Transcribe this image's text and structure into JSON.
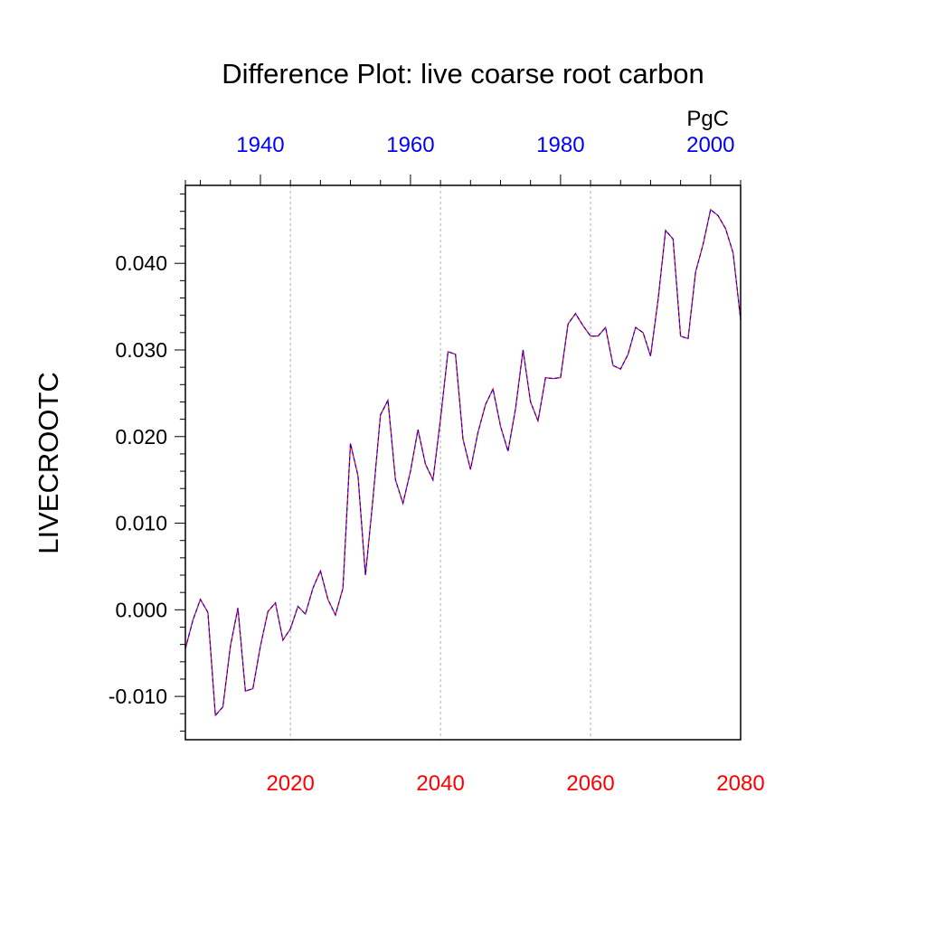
{
  "chart_data": {
    "type": "line",
    "title": "Difference Plot: live coarse root carbon",
    "units": "PgC",
    "ylabel": "LIVECROOTC",
    "ylim": [
      -0.015,
      0.049
    ],
    "y_ticks": [
      -0.01,
      0.0,
      0.01,
      0.02,
      0.03,
      0.04
    ],
    "y_tick_labels": [
      "-0.010",
      "0.000",
      "0.010",
      "0.020",
      "0.030",
      "0.040"
    ],
    "x_bottom": {
      "range": [
        2006,
        2080
      ],
      "ticks": [
        2020,
        2040,
        2060,
        2080
      ],
      "tick_labels": [
        "2020",
        "2040",
        "2060",
        "2080"
      ],
      "color": "#ff0000"
    },
    "x_top": {
      "range": [
        1930,
        2004
      ],
      "ticks": [
        1940,
        1960,
        1980,
        2000
      ],
      "tick_labels": [
        "1940",
        "1960",
        "1980",
        "2000"
      ],
      "color": "#0000ff"
    },
    "grid": "vertical-dotted",
    "series": [
      {
        "line_colors": [
          "#ff0000",
          "#0000ff"
        ],
        "x": [
          2006,
          2007,
          2008,
          2009,
          2010,
          2011,
          2012,
          2013,
          2014,
          2015,
          2016,
          2017,
          2018,
          2019,
          2020,
          2021,
          2022,
          2023,
          2024,
          2025,
          2026,
          2027,
          2028,
          2029,
          2030,
          2031,
          2032,
          2033,
          2034,
          2035,
          2036,
          2037,
          2038,
          2039,
          2040,
          2041,
          2042,
          2043,
          2044,
          2045,
          2046,
          2047,
          2048,
          2049,
          2050,
          2051,
          2052,
          2053,
          2054,
          2055,
          2056,
          2057,
          2058,
          2059,
          2060,
          2061,
          2062,
          2063,
          2064,
          2065,
          2066,
          2067,
          2068,
          2069,
          2070,
          2071,
          2072,
          2073,
          2074,
          2075,
          2076,
          2077,
          2078,
          2079,
          2080
        ],
        "y": [
          -0.0045,
          -0.0012,
          0.0012,
          -0.0003,
          -0.0122,
          -0.0112,
          -0.0042,
          0.0002,
          -0.0094,
          -0.0091,
          -0.0042,
          -0.0002,
          0.0008,
          -0.0035,
          -0.0022,
          0.0004,
          -0.0005,
          0.0025,
          0.0045,
          0.0012,
          -0.0006,
          0.0025,
          0.0192,
          0.0155,
          0.004,
          0.0128,
          0.0225,
          0.0242,
          0.015,
          0.0123,
          0.016,
          0.0208,
          0.0168,
          0.015,
          0.022,
          0.0298,
          0.0295,
          0.0197,
          0.0162,
          0.0205,
          0.0237,
          0.0255,
          0.0212,
          0.0183,
          0.0232,
          0.03,
          0.024,
          0.0218,
          0.0268,
          0.0267,
          0.0268,
          0.033,
          0.0342,
          0.0328,
          0.0316,
          0.0316,
          0.0326,
          0.0282,
          0.0278,
          0.0295,
          0.0326,
          0.032,
          0.0293,
          0.0358,
          0.0438,
          0.0428,
          0.0316,
          0.0313,
          0.039,
          0.0422,
          0.0462,
          0.0455,
          0.044,
          0.0412,
          0.0335
        ]
      }
    ]
  }
}
